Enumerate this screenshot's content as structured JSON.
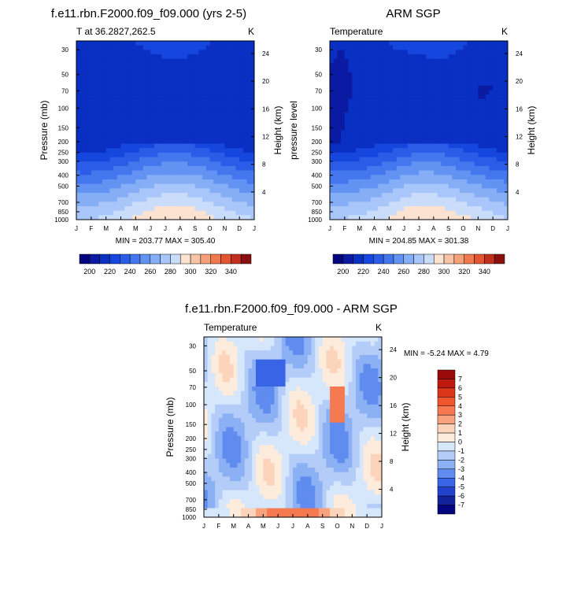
{
  "chart_data": [
    {
      "type": "heatmap",
      "title": "f.e11.rbn.F2000.f09_f09.000 (yrs 2-5)",
      "subtitle_left": "T at 36.2827,262.5",
      "subtitle_right": "K",
      "ylabel": "Pressure (mb)",
      "y2label": "Height (km)",
      "x_ticks": [
        "J",
        "F",
        "M",
        "A",
        "M",
        "J",
        "J",
        "A",
        "S",
        "O",
        "N",
        "D",
        "J"
      ],
      "y_ticks": [
        "30",
        "50",
        "70",
        "100",
        "150",
        "200",
        "250",
        "300",
        "400",
        "500",
        "700",
        "850",
        "1000"
      ],
      "y2_ticks": [
        "24",
        "20",
        "16",
        "12",
        "8",
        "4"
      ],
      "stats": "MIN = 203.77 MAX = 305.40",
      "colorbar_labels": [
        "200",
        "220",
        "240",
        "260",
        "280",
        "300",
        "320",
        "340"
      ],
      "anomaly": false
    },
    {
      "type": "heatmap",
      "title": "ARM SGP",
      "subtitle_left": "Temperature",
      "subtitle_right": "K",
      "ylabel": "pressure level",
      "y2label": "Height (km)",
      "x_ticks": [
        "J",
        "F",
        "M",
        "A",
        "M",
        "J",
        "J",
        "A",
        "S",
        "O",
        "N",
        "D",
        "J"
      ],
      "y_ticks": [
        "30",
        "50",
        "70",
        "100",
        "150",
        "200",
        "250",
        "300",
        "400",
        "500",
        "700",
        "850",
        "1000"
      ],
      "y2_ticks": [
        "24",
        "20",
        "16",
        "12",
        "8",
        "4"
      ],
      "stats": "MIN = 204.85 MAX = 301.38",
      "colorbar_labels": [
        "200",
        "220",
        "240",
        "260",
        "280",
        "300",
        "320",
        "340"
      ],
      "anomaly": false
    },
    {
      "type": "heatmap",
      "title": "f.e11.rbn.F2000.f09_f09.000 - ARM SGP",
      "subtitle_left": "Temperature",
      "subtitle_right": "K",
      "ylabel": "Pressure (mb)",
      "y2label": "Height (km)",
      "x_ticks": [
        "J",
        "F",
        "M",
        "A",
        "M",
        "J",
        "J",
        "A",
        "S",
        "O",
        "N",
        "D",
        "J"
      ],
      "y_ticks": [
        "30",
        "50",
        "70",
        "100",
        "150",
        "200",
        "250",
        "300",
        "400",
        "500",
        "700",
        "850",
        "1000"
      ],
      "y2_ticks": [
        "24",
        "20",
        "16",
        "12",
        "8",
        "4"
      ],
      "stats": "MIN =  -5.24 MAX =   4.79",
      "colorbar_labels": [
        "7",
        "6",
        "5",
        "4",
        "3",
        "2",
        "1",
        "0",
        "-1",
        "-2",
        "-3",
        "-4",
        "-5",
        "-6",
        "-7"
      ],
      "anomaly": true
    }
  ],
  "colors": {
    "temp_scale": [
      "#05067f",
      "#0a1ba2",
      "#0a2fc3",
      "#1546de",
      "#2a5ce8",
      "#4477ee",
      "#6393f2",
      "#86aef6",
      "#a8c6f9",
      "#c9ddfb",
      "#fbe2d1",
      "#f8c4a7",
      "#f6a07a",
      "#f07a50",
      "#e25530",
      "#c0301c",
      "#8a1010"
    ],
    "anom_scale": [
      "#9a0a0a",
      "#be1a10",
      "#dc3618",
      "#ef5630",
      "#f57a52",
      "#f8a27e",
      "#fcd4bb",
      "#fdebdc",
      "#d6e6fb",
      "#b4cdf8",
      "#8cb0f4",
      "#5f8cee",
      "#3a64e6",
      "#2241cd",
      "#12229d",
      "#05057d"
    ]
  }
}
